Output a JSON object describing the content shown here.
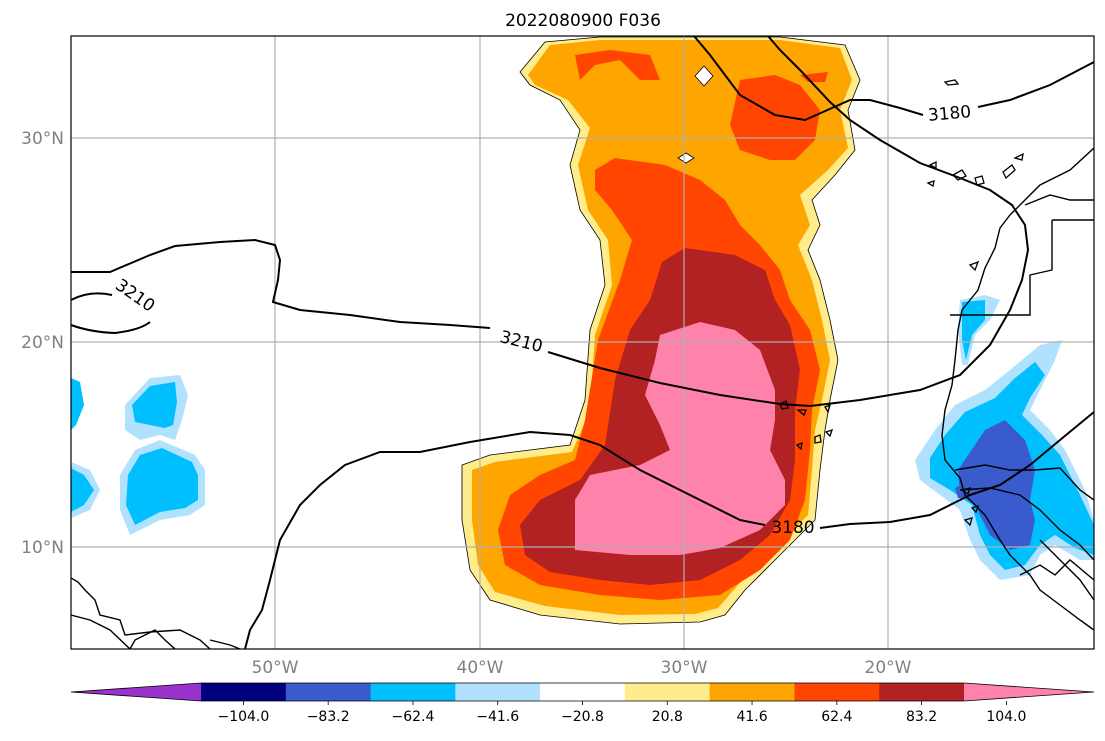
{
  "title": "2022080900 F036",
  "map": {
    "lat_ticks": [
      "30°N",
      "20°N",
      "10°N"
    ],
    "lon_ticks": [
      "50°W",
      "40°W",
      "30°W",
      "20°W"
    ],
    "contour_labels": {
      "c3210_west": "3210",
      "c3210_mid": "3210",
      "c3180_east": "3180",
      "c3180_south": "3180"
    }
  },
  "colorbar": {
    "colors": [
      "#9a32cd",
      "#000080",
      "#3a5bce",
      "#00bfff",
      "#b0e2ff",
      "#ffffff",
      "#ffec8b",
      "#ffa500",
      "#ff4500",
      "#b22222",
      "#ff82ab"
    ],
    "tick_labels": [
      "−104.0",
      "−83.2",
      "−62.4",
      "−41.6",
      "−20.8",
      "20.8",
      "41.6",
      "62.4",
      "83.2",
      "104.0"
    ]
  }
}
